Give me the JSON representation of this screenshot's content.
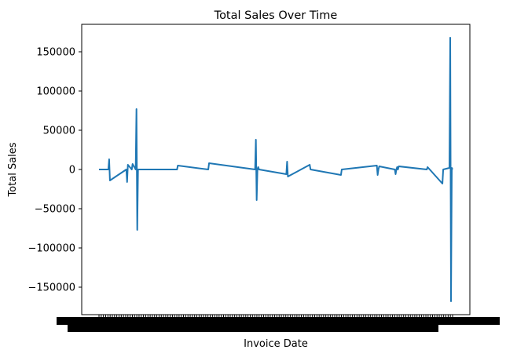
{
  "chart_data": {
    "type": "line",
    "title": "Total Sales Over Time",
    "xlabel": "Invoice Date",
    "ylabel": "Total Sales",
    "ylim": [
      -185000,
      185000
    ],
    "y_ticks": [
      -150000,
      -100000,
      -50000,
      0,
      50000,
      100000,
      150000
    ],
    "y_tick_labels": [
      "−150000",
      "−100000",
      "−50000",
      "0",
      "50000",
      "100000",
      "150000"
    ],
    "x_ticks_note": "overlapping date labels",
    "grid": false,
    "legend": "none",
    "series": [
      {
        "color": "#1f77b4",
        "x_index": [
          0,
          12,
          13,
          14,
          35,
          36,
          37,
          42,
          43,
          47,
          48,
          49,
          50,
          100,
          101,
          140,
          141,
          200,
          201,
          202,
          203,
          204,
          205,
          240,
          241,
          242,
          270,
          271,
          310,
          311,
          356,
          357,
          358,
          359,
          379,
          380,
          381,
          382,
          383,
          384,
          420,
          421,
          440,
          441,
          449,
          450,
          451,
          452,
          453
        ],
        "y": [
          0,
          0,
          13000,
          -14000,
          0,
          -16000,
          6000,
          0,
          7000,
          0,
          77000,
          -77000,
          0,
          0,
          5000,
          0,
          8000,
          0,
          38000,
          -39000,
          0,
          3000,
          0,
          -6000,
          10000,
          -9000,
          6000,
          0,
          -7000,
          0,
          5000,
          -7000,
          0,
          4000,
          0,
          -6000,
          0,
          3000,
          0,
          4000,
          0,
          3000,
          -18000,
          0,
          2000,
          168000,
          -168000,
          2000,
          0
        ]
      }
    ]
  }
}
